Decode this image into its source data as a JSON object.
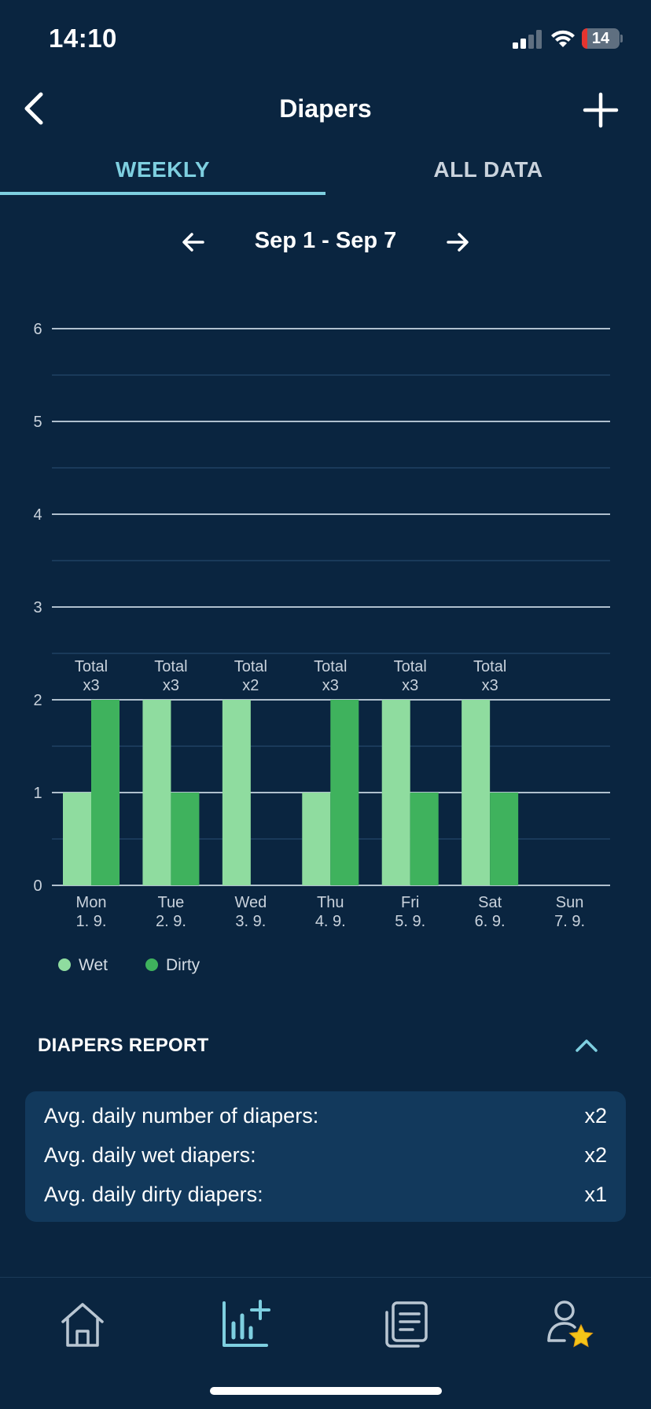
{
  "status_bar": {
    "time": "14:10",
    "battery": "14",
    "battery_level": 0.14
  },
  "header": {
    "title": "Diapers"
  },
  "tabs": [
    {
      "label": "WEEKLY",
      "active": true
    },
    {
      "label": "ALL DATA",
      "active": false
    }
  ],
  "week_nav": {
    "range": "Sep 1 - Sep 7"
  },
  "chart_data": {
    "type": "bar",
    "categories": [
      "Mon",
      "Tue",
      "Wed",
      "Thu",
      "Fri",
      "Sat",
      "Sun"
    ],
    "category_dates": [
      "1. 9.",
      "2. 9.",
      "3. 9.",
      "4. 9.",
      "5. 9.",
      "6. 9.",
      "7. 9."
    ],
    "series": [
      {
        "name": "Wet",
        "color": "#8fdc9f",
        "values": [
          1,
          2,
          2,
          1,
          2,
          2,
          0
        ]
      },
      {
        "name": "Dirty",
        "color": "#3fb25d",
        "values": [
          2,
          1,
          0,
          2,
          1,
          1,
          0
        ]
      }
    ],
    "total_labels": [
      "Total\nx3",
      "Total\nx3",
      "Total\nx2",
      "Total\nx3",
      "Total\nx3",
      "Total\nx3",
      ""
    ],
    "yticks": [
      "0",
      "1",
      "2",
      "3",
      "4",
      "5",
      "6"
    ],
    "ylim": [
      0,
      6
    ],
    "grid": true,
    "legend": "bottom-left"
  },
  "report": {
    "title": "DIAPERS REPORT",
    "rows": [
      {
        "label": "Avg. daily number of diapers:",
        "value": "x2"
      },
      {
        "label": "Avg. daily wet diapers:",
        "value": "x2"
      },
      {
        "label": "Avg. daily dirty diapers:",
        "value": "x1"
      }
    ]
  },
  "colors": {
    "background": "#0a2540",
    "accent": "#7ecfe0",
    "card": "#12395c"
  },
  "bottom_nav": [
    {
      "icon": "home-icon",
      "active": false
    },
    {
      "icon": "stats-add-icon",
      "active": true
    },
    {
      "icon": "articles-icon",
      "active": false
    },
    {
      "icon": "profile-star-icon",
      "active": false
    }
  ]
}
